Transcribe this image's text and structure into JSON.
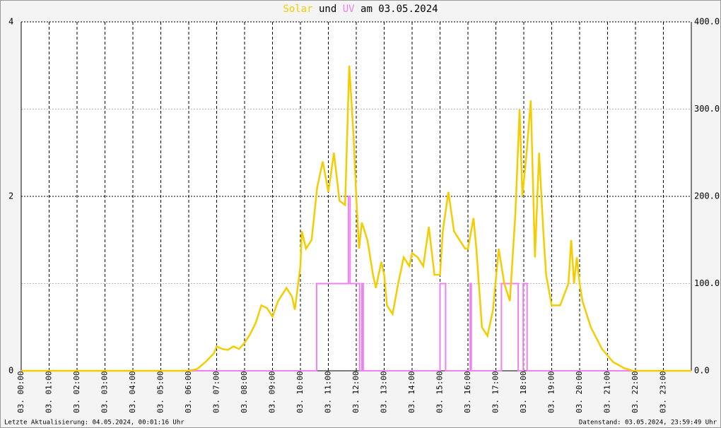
{
  "chart_data": {
    "type": "line",
    "title_joiner": "und",
    "title_suffix": "am 03.05.2024",
    "footer_left": "Letzte Aktualisierung: 04.05.2024, 00:01:16 Uhr",
    "footer_right": "Datenstand: 03.05.2024, 23:59:49 Uhr",
    "xlim": [
      0,
      24
    ],
    "xticks": [
      {
        "value": 0,
        "label": "03. 00:00"
      },
      {
        "value": 1,
        "label": "03. 01:00"
      },
      {
        "value": 2,
        "label": "03. 02:00"
      },
      {
        "value": 3,
        "label": "03. 03:00"
      },
      {
        "value": 4,
        "label": "03. 04:00"
      },
      {
        "value": 5,
        "label": "03. 05:00"
      },
      {
        "value": 6,
        "label": "03. 06:00"
      },
      {
        "value": 7,
        "label": "03. 07:00"
      },
      {
        "value": 8,
        "label": "03. 08:00"
      },
      {
        "value": 9,
        "label": "03. 09:00"
      },
      {
        "value": 10,
        "label": "03. 10:00"
      },
      {
        "value": 11,
        "label": "03. 11:00"
      },
      {
        "value": 12,
        "label": "03. 12:00"
      },
      {
        "value": 13,
        "label": "03. 13:00"
      },
      {
        "value": 14,
        "label": "03. 14:00"
      },
      {
        "value": 15,
        "label": "03. 15:00"
      },
      {
        "value": 16,
        "label": "03. 16:00"
      },
      {
        "value": 17,
        "label": "03. 17:00"
      },
      {
        "value": 18,
        "label": "03. 18:00"
      },
      {
        "value": 19,
        "label": "03. 19:00"
      },
      {
        "value": 20,
        "label": "03. 20:00"
      },
      {
        "value": 21,
        "label": "03. 21:00"
      },
      {
        "value": 22,
        "label": "03. 22:00"
      },
      {
        "value": 23,
        "label": "03. 23:00"
      }
    ],
    "ylim": [
      0,
      4
    ],
    "yticks": [
      0,
      2,
      4
    ],
    "y2lim": [
      0,
      400
    ],
    "y2ticks": [
      {
        "value": 0,
        "label": "0.0"
      },
      {
        "value": 100,
        "label": "100.0"
      },
      {
        "value": 200,
        "label": "200.0"
      },
      {
        "value": 300,
        "label": "300.0"
      },
      {
        "value": 400,
        "label": "400.0"
      }
    ],
    "series": [
      {
        "name": "Solar",
        "color": "#f5cc00",
        "axis": "y2",
        "x": [
          0,
          6,
          6.3,
          6.6,
          6.9,
          7.0,
          7.2,
          7.4,
          7.6,
          7.8,
          8.0,
          8.2,
          8.4,
          8.5,
          8.6,
          8.8,
          9.0,
          9.2,
          9.4,
          9.5,
          9.7,
          9.8,
          10.0,
          10.05,
          10.2,
          10.4,
          10.6,
          10.8,
          11.0,
          11.2,
          11.4,
          11.6,
          11.75,
          11.9,
          12.0,
          12.1,
          12.2,
          12.4,
          12.6,
          12.7,
          12.9,
          13.0,
          13.1,
          13.3,
          13.5,
          13.7,
          13.9,
          14.0,
          14.2,
          14.4,
          14.6,
          14.8,
          15.0,
          15.1,
          15.3,
          15.5,
          15.7,
          15.9,
          16.0,
          16.2,
          16.3,
          16.5,
          16.7,
          16.9,
          17.1,
          17.3,
          17.5,
          17.7,
          17.85,
          17.95,
          18.1,
          18.25,
          18.4,
          18.55,
          18.7,
          18.8,
          19.0,
          19.3,
          19.6,
          19.7,
          19.8,
          19.9,
          20.0,
          20.1,
          20.4,
          20.8,
          21.2,
          21.6,
          21.9,
          24
        ],
        "values": [
          0,
          0,
          2,
          10,
          20,
          28,
          25,
          24,
          28,
          25,
          32,
          42,
          55,
          65,
          75,
          72,
          62,
          80,
          90,
          95,
          85,
          70,
          120,
          160,
          140,
          150,
          210,
          240,
          205,
          250,
          195,
          190,
          350,
          270,
          200,
          140,
          170,
          150,
          110,
          95,
          125,
          110,
          75,
          65,
          100,
          130,
          120,
          135,
          130,
          120,
          165,
          110,
          110,
          160,
          205,
          160,
          150,
          140,
          140,
          175,
          140,
          50,
          40,
          70,
          140,
          100,
          80,
          180,
          300,
          200,
          250,
          310,
          130,
          250,
          160,
          110,
          75,
          75,
          100,
          150,
          100,
          130,
          100,
          80,
          50,
          25,
          10,
          3,
          0,
          0
        ]
      },
      {
        "name": "UV",
        "color": "#ee82ee",
        "axis": "y",
        "x": [
          0,
          10.58,
          10.58,
          11.72,
          11.72,
          11.78,
          11.78,
          12.12,
          12.12,
          12.2,
          12.2,
          12.25,
          12.25,
          15.0,
          15.0,
          15.2,
          15.2,
          16.08,
          16.08,
          16.12,
          16.12,
          17.2,
          17.2,
          17.8,
          17.8,
          17.98,
          17.98,
          18.12,
          18.12,
          24
        ],
        "values": [
          0,
          0,
          1,
          1,
          2,
          2,
          1,
          1,
          0,
          0,
          1,
          1,
          0,
          0,
          1,
          1,
          0,
          0,
          1,
          1,
          0,
          0,
          1,
          1,
          0,
          0,
          1,
          1,
          0,
          0
        ]
      }
    ]
  }
}
